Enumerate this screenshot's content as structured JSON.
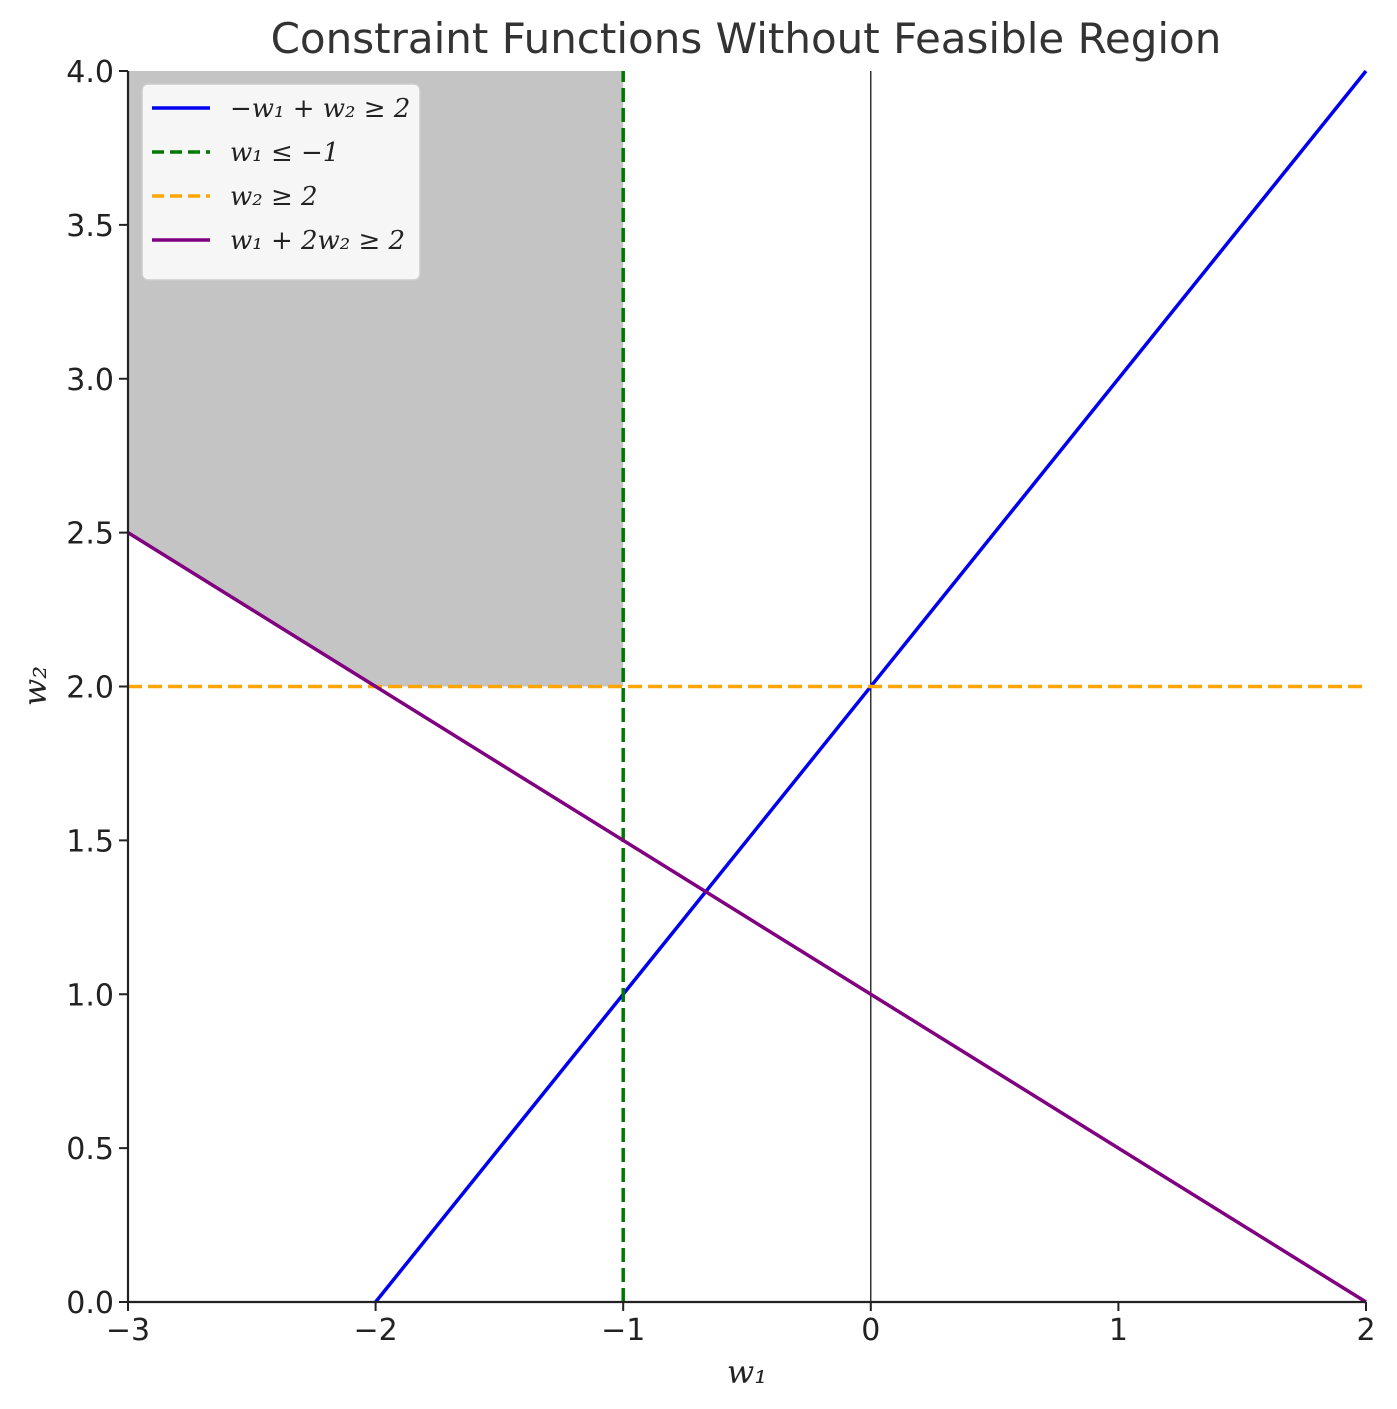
{
  "chart_data": {
    "type": "line",
    "title": "Constraint Functions Without Feasible Region",
    "xlabel": "w₁",
    "ylabel": "w₂",
    "xlim": [
      -3,
      2
    ],
    "ylim": [
      0,
      4
    ],
    "xticks": [
      -3,
      -2,
      -1,
      0,
      1,
      2
    ],
    "xtick_labels": [
      "−3",
      "−2",
      "−1",
      "0",
      "1",
      "2"
    ],
    "yticks": [
      0.0,
      0.5,
      1.0,
      1.5,
      2.0,
      2.5,
      3.0,
      3.5,
      4.0
    ],
    "ytick_labels": [
      "0.0",
      "0.5",
      "1.0",
      "1.5",
      "2.0",
      "2.5",
      "3.0",
      "3.5",
      "4.0"
    ],
    "grid": false,
    "legend_position": "top-left",
    "vertical_reference_line": {
      "x": 0,
      "color": "#000000"
    },
    "shaded_region": {
      "color": "#c4c4c4",
      "polygon": [
        [
          -3,
          2.5
        ],
        [
          -2,
          2.0
        ],
        [
          -1,
          2.0
        ],
        [
          -1,
          4.0
        ],
        [
          -3,
          4.0
        ]
      ]
    },
    "series": [
      {
        "name": "−w₁ + w₂ ≥ 2",
        "color": "#0000ee",
        "style": "solid",
        "x": [
          -2,
          2
        ],
        "y": [
          0,
          4
        ]
      },
      {
        "name": "w₁ ≤ −1",
        "color": "#007700",
        "style": "dashed",
        "x": [
          -1,
          -1
        ],
        "y": [
          0,
          4
        ]
      },
      {
        "name": "w₂ ≥ 2",
        "color": "#ffa500",
        "style": "dashed",
        "x": [
          -3,
          2
        ],
        "y": [
          2,
          2
        ]
      },
      {
        "name": "w₁ + 2w₂ ≥ 2",
        "color": "#800080",
        "style": "solid",
        "x": [
          -3,
          2
        ],
        "y": [
          2.5,
          0
        ]
      }
    ]
  }
}
